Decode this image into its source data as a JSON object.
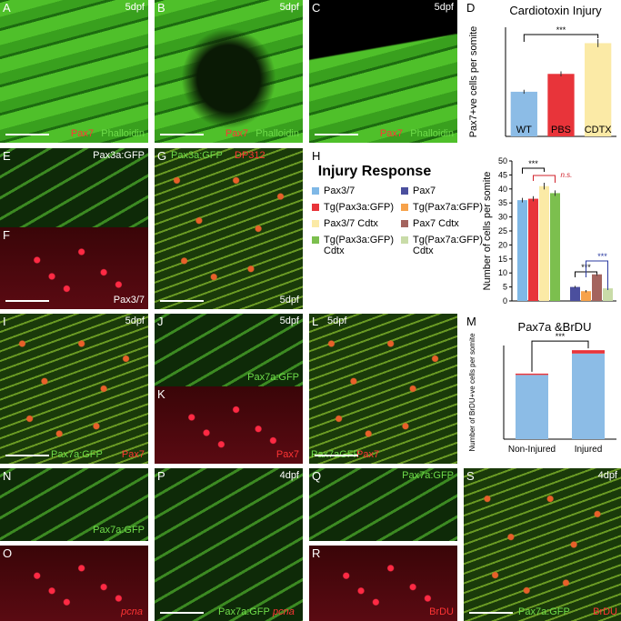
{
  "panels": [
    {
      "letter": "A",
      "labels": [
        "5dpf",
        "Pax7",
        "Phalloidin"
      ]
    },
    {
      "letter": "B",
      "labels": [
        "5dpf",
        "Pax7",
        "Phalloidin"
      ]
    },
    {
      "letter": "C",
      "labels": [
        "5dpf",
        "Pax7",
        "Phalloidin"
      ]
    },
    {
      "letter": "D",
      "labels": []
    },
    {
      "letter": "E",
      "labels": [
        "Pax3a:GFP"
      ]
    },
    {
      "letter": "F",
      "labels": [
        "Pax3/7"
      ]
    },
    {
      "letter": "G",
      "labels": [
        "Pax3a:GFP",
        "DP312",
        "5dpf"
      ]
    },
    {
      "letter": "H",
      "labels": []
    },
    {
      "letter": "I",
      "labels": [
        "5dpf",
        "Pax7a:GFP",
        "Pax7"
      ]
    },
    {
      "letter": "J",
      "labels": [
        "5dpf",
        "Pax7a:GFP"
      ]
    },
    {
      "letter": "K",
      "labels": [
        "Pax7"
      ]
    },
    {
      "letter": "L",
      "labels": [
        "5dpf",
        "Pax7aGFP",
        "Pax7"
      ]
    },
    {
      "letter": "M",
      "labels": []
    },
    {
      "letter": "N",
      "labels": [
        "Pax7a:GFP"
      ]
    },
    {
      "letter": "O",
      "labels": [
        "pcna"
      ]
    },
    {
      "letter": "P",
      "labels": [
        "4dpf",
        "Pax7a:GFP",
        "pcna"
      ]
    },
    {
      "letter": "Q",
      "labels": [
        "Pax7a:GFP"
      ]
    },
    {
      "letter": "R",
      "labels": [
        "BrDU"
      ]
    },
    {
      "letter": "S",
      "labels": [
        "4dpf",
        "Pax7a:GFP",
        "BrDU"
      ]
    }
  ],
  "chart_data": [
    {
      "type": "bar",
      "title": "Cardiotoxin Injury",
      "y_label": "Pax7+ve cells per somite",
      "categories": [
        "WT",
        "PBS",
        "CDTX"
      ],
      "values": [
        4.5,
        6.3,
        9.4
      ],
      "errors": [
        0.2,
        0.25,
        0.4
      ],
      "colors": [
        "#8cbce6",
        "#e8343a",
        "#fbeaa6"
      ],
      "ylim": [
        0,
        11
      ],
      "annotations": [
        "***"
      ]
    },
    {
      "type": "grouped_bar",
      "title": "Injury Response",
      "y_label": "Number of cells per somite",
      "ylim": [
        0,
        50
      ],
      "yticks": [
        0,
        5,
        10,
        15,
        20,
        25,
        30,
        35,
        40,
        45,
        50
      ],
      "series": [
        {
          "name": "Pax3/7",
          "color": "#7fb8e6",
          "values": [
            36
          ],
          "errors": [
            0.8
          ]
        },
        {
          "name": "Pax7",
          "color": "#4b4f9e",
          "values": [
            5
          ],
          "errors": [
            0.4
          ]
        },
        {
          "name": "Tg(Pax3a:GFP)",
          "color": "#e8343a",
          "values": [
            36.5
          ],
          "errors": [
            0.9
          ]
        },
        {
          "name": "Tg(Pax7a:GFP)",
          "color": "#f7a24a",
          "values": [
            3.5
          ],
          "errors": [
            0.4
          ]
        },
        {
          "name": "Pax3/7 Cdtx",
          "color": "#fbeaa6",
          "values": [
            41
          ],
          "errors": [
            1.2
          ]
        },
        {
          "name": "Pax7 Cdtx",
          "color": "#a4645e",
          "values": [
            9.5
          ],
          "errors": [
            0.5
          ]
        },
        {
          "name": "Tg(Pax3a:GFP) Cdtx",
          "color": "#7cbf4e",
          "values": [
            38.5
          ],
          "errors": [
            1.0
          ]
        },
        {
          "name": "Tg(Pax7a:GFP) Cdtx",
          "color": "#c9dca8",
          "values": [
            4.5
          ],
          "errors": [
            0.4
          ]
        }
      ],
      "annotations": [
        "***",
        "n.s.",
        "***",
        "***"
      ]
    },
    {
      "type": "stacked_bar",
      "title": "Pax7a &BrDU",
      "y_label": "Number of BrDU+ve cells per somite",
      "categories": [
        "Non-Injured",
        "Injured"
      ],
      "ylim": [
        0,
        70
      ],
      "series": [
        {
          "color": "#8cbce6",
          "values": [
            48,
            64
          ]
        },
        {
          "color": "#e8343a",
          "values": [
            1,
            2.5
          ]
        }
      ],
      "annotations": [
        "***"
      ]
    }
  ]
}
